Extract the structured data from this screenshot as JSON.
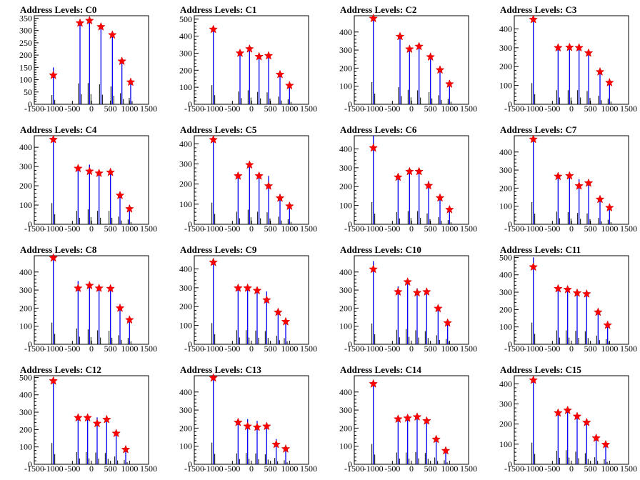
{
  "chart_data": [
    {
      "type": "histogram",
      "title": "Address Levels: C0",
      "ylim": [
        0,
        360
      ],
      "yticks": [
        0,
        50,
        100,
        150,
        200,
        250,
        300,
        350
      ],
      "xlim": [
        -1500,
        1500
      ],
      "xticks": [
        -1500,
        -1000,
        -500,
        0,
        500,
        1000,
        1500
      ],
      "x": [
        -1000,
        -300,
        -50,
        250,
        550,
        800,
        1030
      ],
      "values": [
        150,
        340,
        345,
        325,
        290,
        180,
        105
      ],
      "peaks": [
        118,
        330,
        340,
        315,
        282,
        175,
        90
      ]
    },
    {
      "type": "histogram",
      "title": "Address Levels: C1",
      "ylim": [
        0,
        520
      ],
      "yticks": [
        0,
        100,
        200,
        300,
        400,
        500
      ],
      "xlim": [
        -1500,
        1500
      ],
      "xticks": [
        -1500,
        -1000,
        -500,
        0,
        500,
        1000,
        1500
      ],
      "x": [
        -1000,
        -300,
        -50,
        200,
        450,
        750,
        1000
      ],
      "values": [
        450,
        300,
        330,
        290,
        280,
        180,
        120
      ],
      "peaks": [
        440,
        300,
        325,
        280,
        285,
        175,
        110
      ]
    },
    {
      "type": "histogram",
      "title": "Address Levels: C2",
      "ylim": [
        0,
        490
      ],
      "yticks": [
        0,
        100,
        200,
        300,
        400
      ],
      "xlim": [
        -1500,
        1500
      ],
      "xticks": [
        -1500,
        -1000,
        -500,
        0,
        500,
        1000,
        1500
      ],
      "x": [
        -1000,
        -300,
        -50,
        200,
        500,
        750,
        1000
      ],
      "values": [
        490,
        380,
        320,
        310,
        270,
        200,
        120
      ],
      "peaks": [
        475,
        375,
        305,
        320,
        262,
        190,
        112
      ]
    },
    {
      "type": "histogram",
      "title": "Address Levels: C3",
      "ylim": [
        0,
        470
      ],
      "yticks": [
        0,
        100,
        200,
        300,
        400
      ],
      "xlim": [
        -1500,
        1500
      ],
      "xticks": [
        -1500,
        -1000,
        -500,
        0,
        500,
        1000,
        1500
      ],
      "x": [
        -1000,
        -350,
        -50,
        200,
        450,
        750,
        1000
      ],
      "values": [
        450,
        300,
        300,
        300,
        280,
        180,
        120
      ],
      "peaks": [
        450,
        300,
        302,
        300,
        272,
        172,
        115
      ]
    },
    {
      "type": "histogram",
      "title": "Address Levels: C4",
      "ylim": [
        0,
        460
      ],
      "yticks": [
        0,
        100,
        200,
        300,
        400
      ],
      "xlim": [
        -1500,
        1500
      ],
      "xticks": [
        -1500,
        -1000,
        -500,
        0,
        500,
        1000,
        1500
      ],
      "x": [
        -1000,
        -350,
        -50,
        200,
        500,
        750,
        1000
      ],
      "values": [
        440,
        280,
        310,
        280,
        280,
        160,
        100
      ],
      "peaks": [
        440,
        290,
        275,
        265,
        270,
        150,
        80
      ]
    },
    {
      "type": "histogram",
      "title": "Address Levels: C5",
      "ylim": [
        0,
        440
      ],
      "yticks": [
        0,
        100,
        200,
        300,
        400
      ],
      "xlim": [
        -1500,
        1500
      ],
      "xticks": [
        -1500,
        -1000,
        -500,
        0,
        500,
        1000,
        1500
      ],
      "x": [
        -1000,
        -350,
        -50,
        200,
        450,
        750,
        1000
      ],
      "values": [
        430,
        250,
        290,
        250,
        240,
        150,
        100
      ],
      "peaks": [
        420,
        240,
        295,
        240,
        190,
        130,
        90
      ]
    },
    {
      "type": "histogram",
      "title": "Address Levels: C6",
      "ylim": [
        0,
        470
      ],
      "yticks": [
        0,
        100,
        200,
        300,
        400
      ],
      "xlim": [
        -1500,
        1500
      ],
      "xticks": [
        -1500,
        -1000,
        -500,
        0,
        500,
        1000,
        1500
      ],
      "x": [
        -1000,
        -350,
        -50,
        200,
        450,
        750,
        1000
      ],
      "values": [
        470,
        260,
        280,
        280,
        230,
        150,
        90
      ],
      "peaks": [
        405,
        250,
        280,
        280,
        205,
        140,
        78
      ]
    },
    {
      "type": "histogram",
      "title": "Address Levels: C7",
      "ylim": [
        0,
        490
      ],
      "yticks": [
        0,
        100,
        200,
        300,
        400
      ],
      "xlim": [
        -1500,
        1500
      ],
      "xticks": [
        -1500,
        -1000,
        -500,
        0,
        500,
        1000,
        1500
      ],
      "x": [
        -1000,
        -350,
        -50,
        200,
        450,
        750,
        1000
      ],
      "values": [
        490,
        280,
        270,
        250,
        240,
        140,
        100
      ],
      "peaks": [
        470,
        265,
        268,
        212,
        228,
        138,
        92
      ]
    },
    {
      "type": "histogram",
      "title": "Address Levels: C8",
      "ylim": [
        0,
        490
      ],
      "yticks": [
        0,
        100,
        200,
        300,
        400
      ],
      "xlim": [
        -1500,
        1500
      ],
      "xticks": [
        -1500,
        -1000,
        -500,
        0,
        500,
        1000,
        1500
      ],
      "x": [
        -1000,
        -350,
        -50,
        200,
        500,
        750,
        1000
      ],
      "values": [
        480,
        350,
        330,
        310,
        300,
        200,
        140
      ],
      "peaks": [
        478,
        310,
        325,
        310,
        308,
        200,
        135
      ]
    },
    {
      "type": "histogram",
      "title": "Address Levels: C9",
      "ylim": [
        0,
        470
      ],
      "yticks": [
        0,
        100,
        200,
        300,
        400
      ],
      "xlim": [
        -1500,
        1500
      ],
      "xticks": [
        -1500,
        -1000,
        -500,
        0,
        500,
        1000,
        1500
      ],
      "x": [
        -1000,
        -350,
        -100,
        150,
        400,
        700,
        900
      ],
      "values": [
        450,
        300,
        300,
        290,
        280,
        180,
        130
      ],
      "peaks": [
        435,
        298,
        298,
        285,
        235,
        170,
        120
      ]
    },
    {
      "type": "histogram",
      "title": "Address Levels: C10",
      "ylim": [
        0,
        490
      ],
      "yticks": [
        0,
        100,
        200,
        300,
        400
      ],
      "xlim": [
        -1500,
        1500
      ],
      "xticks": [
        -1500,
        -1000,
        -500,
        0,
        500,
        1000,
        1500
      ],
      "x": [
        -1000,
        -350,
        -100,
        150,
        400,
        700,
        950
      ],
      "values": [
        460,
        320,
        340,
        310,
        290,
        200,
        120
      ],
      "peaks": [
        415,
        290,
        345,
        285,
        290,
        198,
        118
      ]
    },
    {
      "type": "histogram",
      "title": "Address Levels: C11",
      "ylim": [
        0,
        510
      ],
      "yticks": [
        0,
        100,
        200,
        300,
        400,
        500
      ],
      "xlim": [
        -1500,
        1500
      ],
      "xticks": [
        -1500,
        -1000,
        -500,
        0,
        500,
        1000,
        1500
      ],
      "x": [
        -1000,
        -350,
        -100,
        150,
        400,
        700,
        950
      ],
      "values": [
        500,
        320,
        320,
        310,
        300,
        200,
        120
      ],
      "peaks": [
        445,
        320,
        315,
        295,
        290,
        185,
        110
      ]
    },
    {
      "type": "histogram",
      "title": "Address Levels: C12",
      "ylim": [
        0,
        510
      ],
      "yticks": [
        0,
        100,
        200,
        300,
        400,
        500
      ],
      "xlim": [
        -1500,
        1500
      ],
      "xticks": [
        -1500,
        -1000,
        -500,
        0,
        500,
        1000,
        1500
      ],
      "x": [
        -1000,
        -350,
        -100,
        150,
        400,
        650,
        900
      ],
      "values": [
        490,
        280,
        280,
        270,
        260,
        180,
        100
      ],
      "peaks": [
        480,
        268,
        268,
        235,
        258,
        178,
        85
      ]
    },
    {
      "type": "histogram",
      "title": "Address Levels: C13",
      "ylim": [
        0,
        490
      ],
      "yticks": [
        0,
        100,
        200,
        300,
        400
      ],
      "xlim": [
        -1500,
        1500
      ],
      "xticks": [
        -1500,
        -1000,
        -500,
        0,
        500,
        1000,
        1500
      ],
      "x": [
        -1000,
        -350,
        -100,
        150,
        400,
        650,
        900
      ],
      "values": [
        480,
        240,
        250,
        240,
        220,
        140,
        90
      ],
      "peaks": [
        478,
        232,
        210,
        205,
        210,
        110,
        85
      ]
    },
    {
      "type": "histogram",
      "title": "Address Levels: C14",
      "ylim": [
        0,
        490
      ],
      "yticks": [
        0,
        100,
        200,
        300,
        400
      ],
      "xlim": [
        -1500,
        1500
      ],
      "xticks": [
        -1500,
        -1000,
        -500,
        0,
        500,
        1000,
        1500
      ],
      "x": [
        -1000,
        -350,
        -100,
        150,
        400,
        650,
        900
      ],
      "values": [
        450,
        260,
        260,
        270,
        250,
        150,
        90
      ],
      "peaks": [
        445,
        250,
        255,
        262,
        240,
        138,
        75
      ]
    },
    {
      "type": "histogram",
      "title": "Address Levels: C15",
      "ylim": [
        0,
        440
      ],
      "yticks": [
        0,
        100,
        200,
        300,
        400
      ],
      "xlim": [
        -1500,
        1500
      ],
      "xticks": [
        -1500,
        -1000,
        -500,
        0,
        500,
        1000,
        1500
      ],
      "x": [
        -1000,
        -350,
        -100,
        150,
        400,
        650,
        900
      ],
      "values": [
        430,
        270,
        280,
        250,
        220,
        140,
        100
      ],
      "peaks": [
        418,
        255,
        268,
        238,
        208,
        130,
        98
      ]
    }
  ],
  "style": {
    "histogram_color": "#0000ee",
    "marker_color": "#ff0000",
    "marker": "star"
  }
}
